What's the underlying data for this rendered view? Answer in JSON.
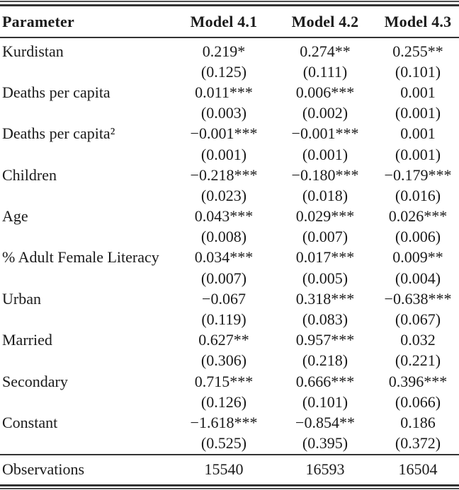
{
  "colors": {
    "background": "#ffffff",
    "text": "#1a1a1a",
    "rule": "#333333"
  },
  "table": {
    "columns": [
      {
        "label": "Parameter"
      },
      {
        "label": "Model 4.1"
      },
      {
        "label": "Model 4.2"
      },
      {
        "label": "Model 4.3"
      }
    ],
    "rows": [
      {
        "parameter": "Kurdistan",
        "coefficients": [
          "0.219*",
          "0.274**",
          "0.255**"
        ],
        "std_errors": [
          "(0.125)",
          "(0.111)",
          "(0.101)"
        ]
      },
      {
        "parameter": "Deaths per capita",
        "coefficients": [
          "0.011***",
          "0.006***",
          "0.001"
        ],
        "std_errors": [
          "(0.003)",
          "(0.002)",
          "(0.001)"
        ]
      },
      {
        "parameter": "Deaths per capita²",
        "coefficients": [
          "−0.001***",
          "−0.001***",
          "0.001"
        ],
        "std_errors": [
          "(0.001)",
          "(0.001)",
          "(0.001)"
        ]
      },
      {
        "parameter": "Children",
        "coefficients": [
          "−0.218***",
          "−0.180***",
          "−0.179***"
        ],
        "std_errors": [
          "(0.023)",
          "(0.018)",
          "(0.016)"
        ]
      },
      {
        "parameter": "Age",
        "coefficients": [
          "0.043***",
          "0.029***",
          "0.026***"
        ],
        "std_errors": [
          "(0.008)",
          "(0.007)",
          "(0.006)"
        ]
      },
      {
        "parameter": "% Adult Female Literacy",
        "coefficients": [
          "0.034***",
          "0.017***",
          "0.009**"
        ],
        "std_errors": [
          "(0.007)",
          "(0.005)",
          "(0.004)"
        ]
      },
      {
        "parameter": "Urban",
        "coefficients": [
          "−0.067",
          "0.318***",
          "−0.638***"
        ],
        "std_errors": [
          "(0.119)",
          "(0.083)",
          "(0.067)"
        ]
      },
      {
        "parameter": "Married",
        "coefficients": [
          "0.627**",
          "0.957***",
          "0.032"
        ],
        "std_errors": [
          "(0.306)",
          "(0.218)",
          "(0.221)"
        ]
      },
      {
        "parameter": "Secondary",
        "coefficients": [
          "0.715***",
          "0.666***",
          "0.396***"
        ],
        "std_errors": [
          "(0.126)",
          "(0.101)",
          "(0.066)"
        ]
      },
      {
        "parameter": "Constant",
        "coefficients": [
          "−1.618***",
          "−0.854**",
          "0.186"
        ],
        "std_errors": [
          "(0.525)",
          "(0.395)",
          "(0.372)"
        ]
      }
    ],
    "summary": {
      "label": "Observations",
      "values": [
        "15540",
        "16593",
        "16504"
      ]
    }
  }
}
